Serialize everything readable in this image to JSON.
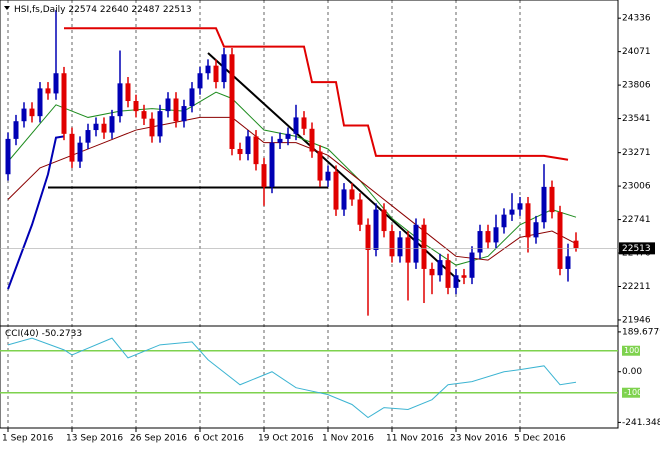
{
  "chart_data": [
    {
      "type": "candlestick",
      "title": "HSI,fs,Daily",
      "categories": [
        "1 Sep 2016",
        null,
        null,
        null,
        null,
        null,
        null,
        null,
        "13 Sep 2016",
        null,
        null,
        null,
        null,
        null,
        null,
        null,
        "26 Sep 2016",
        null,
        null,
        null,
        null,
        null,
        null,
        null,
        "6 Oct 2016",
        null,
        null,
        null,
        null,
        null,
        null,
        null,
        "19 Oct 2016",
        null,
        null,
        null,
        null,
        null,
        null,
        null,
        "1 Nov 2016",
        null,
        null,
        null,
        null,
        null,
        null,
        null,
        "11 Nov 2016",
        null,
        null,
        null,
        null,
        null,
        null,
        null,
        "23 Nov 2016",
        null,
        null,
        null,
        null,
        null,
        null,
        null,
        "5 Dec 2016",
        null,
        null,
        null,
        null,
        null,
        null,
        null
      ],
      "open": [
        23100,
        23380,
        23520,
        23620,
        23560,
        23780,
        23740,
        23900,
        23420,
        23200,
        23350,
        23450,
        23500,
        23430,
        23560,
        23820,
        23680,
        23600,
        23540,
        23400,
        23600,
        23700,
        23520,
        23640,
        23780,
        23900,
        23960,
        23830,
        24050,
        23300,
        23260,
        23400,
        23180,
        23000,
        23350,
        23380,
        23420,
        23550,
        23460,
        23280,
        23050,
        23120,
        22820,
        22980,
        22900,
        22700,
        22500,
        22820,
        22650,
        22450,
        22600,
        22400,
        22700,
        22350,
        22300,
        22420,
        22200,
        22300,
        22280,
        22480,
        22650,
        22560,
        22680,
        22780,
        22820,
        22870,
        22600,
        22720,
        23000,
        22800,
        22350,
        22574
      ],
      "high": [
        23430,
        23570,
        23670,
        23670,
        23830,
        23830,
        24400,
        23950,
        23470,
        23400,
        23500,
        23550,
        23550,
        23610,
        24080,
        23870,
        23730,
        23650,
        23590,
        23650,
        23750,
        23750,
        23690,
        23830,
        23950,
        24010,
        24010,
        24100,
        24100,
        23350,
        23450,
        23450,
        23230,
        23400,
        23430,
        23470,
        23650,
        23600,
        23510,
        23330,
        23170,
        23170,
        23030,
        23030,
        22950,
        22750,
        22870,
        22870,
        22700,
        22650,
        22650,
        22750,
        22750,
        22400,
        22470,
        22470,
        22350,
        22350,
        22530,
        22700,
        22700,
        22780,
        22830,
        22950,
        22920,
        22920,
        22770,
        23180,
        23050,
        22850,
        22550,
        22640
      ],
      "low": [
        23050,
        23330,
        23470,
        23510,
        23510,
        23690,
        23690,
        23370,
        23150,
        23150,
        23300,
        23400,
        23380,
        23380,
        23510,
        23630,
        23550,
        23490,
        23350,
        23350,
        23550,
        23470,
        23470,
        23590,
        23730,
        23850,
        23780,
        23780,
        23250,
        23210,
        23210,
        23130,
        22850,
        22950,
        23300,
        23330,
        23370,
        23410,
        23230,
        23000,
        23000,
        22770,
        22770,
        22850,
        22650,
        21980,
        22450,
        22600,
        22400,
        22400,
        22100,
        22350,
        22080,
        22150,
        22250,
        22150,
        22150,
        22230,
        22230,
        22430,
        22510,
        22510,
        22630,
        22730,
        22770,
        22480,
        22550,
        22670,
        22750,
        22300,
        22250,
        22487
      ],
      "close": [
        23380,
        23520,
        23620,
        23560,
        23780,
        23740,
        23900,
        23420,
        23200,
        23350,
        23450,
        23500,
        23430,
        23560,
        23820,
        23680,
        23600,
        23540,
        23400,
        23600,
        23700,
        23520,
        23640,
        23780,
        23900,
        23960,
        23830,
        24050,
        23300,
        23260,
        23400,
        23180,
        23000,
        23350,
        23380,
        23420,
        23550,
        23460,
        23280,
        23050,
        23120,
        22820,
        22980,
        22900,
        22700,
        22500,
        22820,
        22650,
        22450,
        22600,
        22400,
        22700,
        22350,
        22300,
        22420,
        22200,
        22300,
        22280,
        22480,
        22650,
        22560,
        22680,
        22780,
        22820,
        22870,
        22600,
        22720,
        23000,
        22800,
        22350,
        22450,
        22513
      ],
      "up_color": "#0000b4",
      "down_color": "#e00000",
      "ylim": [
        21906,
        24480
      ],
      "yticks": [
        24336,
        24071,
        23806,
        23541,
        23271,
        23006,
        22741,
        22476,
        22211,
        21946
      ],
      "overlays": [
        {
          "color": "#000000",
          "x": [
            5,
            40
          ],
          "values": [
            22995,
            22995
          ]
        },
        {
          "color": "#000000",
          "x": [
            25,
            56.5
          ],
          "values": [
            24060,
            22250
          ]
        },
        {
          "color": "#e00000",
          "x": [
            7,
            26,
            27,
            37,
            38,
            41,
            42,
            45,
            46,
            67,
            70
          ],
          "values": [
            24256,
            24256,
            24111,
            24111,
            23830,
            23830,
            23486,
            23486,
            23245,
            23245,
            23215
          ]
        },
        {
          "color": "#1e8c1e",
          "x": [
            0,
            4,
            6,
            10,
            14,
            18,
            22,
            26,
            28,
            32,
            36,
            40,
            44,
            48,
            52,
            56,
            60,
            64,
            68,
            71
          ],
          "values": [
            23200,
            23500,
            23650,
            23550,
            23600,
            23620,
            23600,
            23750,
            23700,
            23450,
            23400,
            23300,
            23050,
            22750,
            22550,
            22380,
            22450,
            22700,
            22820,
            22760
          ]
        },
        {
          "color": "#8b0000",
          "x": [
            0,
            4,
            8,
            12,
            16,
            20,
            24,
            28,
            32,
            36,
            40,
            44,
            48,
            52,
            56,
            60,
            64,
            68,
            71
          ],
          "values": [
            22900,
            23150,
            23250,
            23350,
            23450,
            23500,
            23550,
            23550,
            23350,
            23350,
            23250,
            23050,
            22850,
            22650,
            22450,
            22420,
            22600,
            22650,
            22550
          ]
        },
        {
          "color": "#0000b4",
          "x": [
            0,
            3,
            5,
            6,
            7
          ],
          "values": [
            22190,
            22700,
            23100,
            23390,
            23400
          ]
        }
      ]
    },
    {
      "type": "line",
      "title": "CCI(40)",
      "x": [
        0,
        3,
        7,
        8,
        13,
        15,
        19,
        23,
        25,
        29,
        33,
        36,
        40,
        43,
        45,
        47,
        50,
        53,
        55,
        58,
        62,
        64,
        67,
        69,
        71
      ],
      "values": [
        128,
        160,
        104,
        80,
        160,
        66,
        128,
        142,
        57,
        -62,
        0,
        -76,
        -109,
        -156,
        -218,
        -171,
        -180,
        -133,
        -62,
        -47,
        0,
        10,
        28,
        -62,
        -50.2733
      ],
      "color": "#3cb4d2",
      "ylim": [
        -268,
        213
      ],
      "yticks": [
        189.6779,
        {
          "value": 0,
          "label": "0.00"
        },
        -241.348
      ],
      "levels": [
        100,
        -100
      ],
      "level_color": "#7ed24e"
    }
  ]
}
